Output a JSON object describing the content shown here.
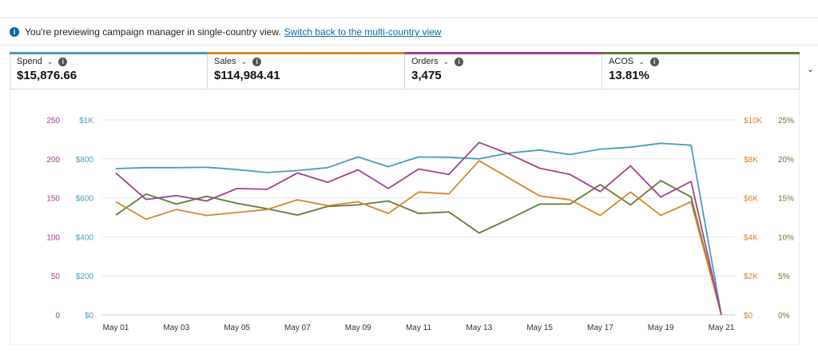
{
  "banner": {
    "text": "You're previewing campaign manager in single-country view.",
    "link": "Switch back to the multi-country view",
    "icon": "info-icon"
  },
  "metrics": [
    {
      "label": "Spend",
      "value": "$15,876.66",
      "color": "#4a9bc1"
    },
    {
      "label": "Sales",
      "value": "$114,984.41",
      "color": "#d8852b"
    },
    {
      "label": "Orders",
      "value": "3,475",
      "color": "#a2428a"
    },
    {
      "label": "ACOS",
      "value": "13.81%",
      "color": "#5e7d33"
    }
  ],
  "chart_data": {
    "type": "line",
    "x": [
      "May 01",
      "May 02",
      "May 03",
      "May 04",
      "May 05",
      "May 06",
      "May 07",
      "May 08",
      "May 09",
      "May 10",
      "May 11",
      "May 12",
      "May 13",
      "May 14",
      "May 15",
      "May 16",
      "May 17",
      "May 18",
      "May 19",
      "May 20",
      "May 21"
    ],
    "x_tick_labels": [
      "May 01",
      "May 03",
      "May 05",
      "May 07",
      "May 09",
      "May 11",
      "May 13",
      "May 15",
      "May 17",
      "May 19",
      "May 21"
    ],
    "axes": [
      {
        "series": "Orders",
        "side": "left-outer",
        "ticks": [
          "250",
          "200",
          "150",
          "100",
          "50",
          "0"
        ],
        "ylim": [
          0,
          250
        ],
        "color": "#a2428a"
      },
      {
        "series": "Spend",
        "side": "left-inner",
        "ticks": [
          "$1K",
          "$800",
          "$600",
          "$400",
          "$200",
          "$0"
        ],
        "ylim": [
          0,
          1000
        ],
        "color": "#4a9bc1"
      },
      {
        "series": "Sales",
        "side": "right-inner",
        "ticks": [
          "$10K",
          "$8K",
          "$6K",
          "$4K",
          "$2K",
          "$0"
        ],
        "ylim": [
          0,
          10000
        ],
        "color": "#d8852b"
      },
      {
        "series": "ACOS",
        "side": "right-outer",
        "ticks": [
          "25%",
          "20%",
          "15%",
          "10%",
          "5%",
          "0%"
        ],
        "ylim": [
          0,
          25
        ],
        "color": "#5e7d33"
      }
    ],
    "series": [
      {
        "name": "Spend",
        "color": "#4a9bc1",
        "ylim": [
          0,
          1000
        ],
        "values": [
          750,
          755,
          755,
          757,
          745,
          730,
          740,
          755,
          810,
          760,
          810,
          808,
          800,
          830,
          845,
          822,
          850,
          860,
          880,
          870,
          0
        ]
      },
      {
        "name": "Sales",
        "color": "#d8852b",
        "ylim": [
          0,
          10000
        ],
        "values": [
          5800,
          4900,
          5400,
          5100,
          5250,
          5400,
          5900,
          5600,
          5800,
          5200,
          6300,
          6200,
          7900,
          7000,
          6100,
          5900,
          5100,
          6300,
          5100,
          5800,
          0
        ]
      },
      {
        "name": "Orders",
        "color": "#a2428a",
        "ylim": [
          0,
          250
        ],
        "values": [
          182,
          148,
          153,
          146,
          162,
          161,
          182,
          170,
          186,
          162,
          187,
          180,
          221,
          206,
          188,
          180,
          158,
          191,
          151,
          171,
          0
        ]
      },
      {
        "name": "ACOS",
        "color": "#5e7d33",
        "ylim": [
          0,
          25
        ],
        "values": [
          12.8,
          15.5,
          14.2,
          15.2,
          14.3,
          13.6,
          12.8,
          13.9,
          14.1,
          14.6,
          13.0,
          13.2,
          10.5,
          12.3,
          14.2,
          14.2,
          16.7,
          14.1,
          17.2,
          15.1,
          0
        ]
      }
    ],
    "grid": true
  }
}
